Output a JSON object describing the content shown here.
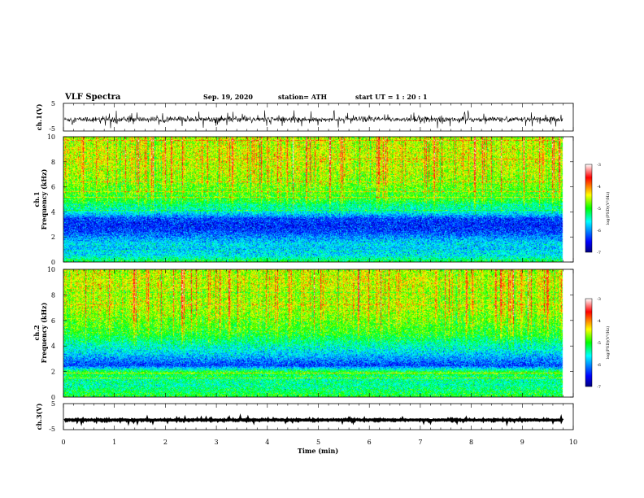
{
  "header": {
    "title": "VLF Spectra",
    "date": "Sep. 19, 2020",
    "station": "station= ATH",
    "start": "start  UT =   1 : 20 : 1"
  },
  "chart_data": [
    {
      "type": "line",
      "name": "ch1-waveform",
      "ylabel": "ch.1(V)",
      "ylim": [
        -5,
        5
      ],
      "yticklabels": [
        "5",
        "-5"
      ],
      "xlim": [
        0,
        10
      ],
      "trace_end_min": 9.8,
      "approx_baseline_V": -0.8,
      "approx_spread_V": 1.6
    },
    {
      "type": "heatmap",
      "name": "ch1-spectrogram",
      "ylabel": "ch.1\nFrequency (kHz)",
      "ylim": [
        0,
        10
      ],
      "yticklabels": [
        "0",
        "2",
        "4",
        "6",
        "8",
        "10"
      ],
      "xlim": [
        0,
        10
      ],
      "data_end_min": 9.8,
      "colorbar": {
        "label": "log(PSD)(V²/Hz)",
        "range": [
          -7,
          -3
        ],
        "ticklabels": [
          "-3",
          "-4",
          "-5",
          "-6",
          "-7"
        ]
      },
      "frequency_profile_kHz": [
        0,
        0.5,
        1.0,
        1.5,
        2.0,
        2.5,
        3.0,
        3.5,
        4.0,
        5.0,
        6.0,
        7.0,
        8.0,
        9.0,
        10.0
      ],
      "frequency_profile_log_psd": [
        -5.0,
        -5.6,
        -5.8,
        -5.7,
        -6.0,
        -6.3,
        -6.4,
        -6.3,
        -5.6,
        -5.0,
        -4.8,
        -4.6,
        -4.5,
        -4.5,
        -4.6
      ]
    },
    {
      "type": "heatmap",
      "name": "ch2-spectrogram",
      "ylabel": "ch.2\nFrequency (kHz)",
      "ylim": [
        0,
        10
      ],
      "yticklabels": [
        "0",
        "2",
        "4",
        "6",
        "8",
        "10"
      ],
      "xlim": [
        0,
        10
      ],
      "data_end_min": 9.8,
      "colorbar": {
        "label": "log(PSD)(V²/Hz)",
        "range": [
          -7,
          -3
        ],
        "ticklabels": [
          "-3",
          "-4",
          "-5",
          "-6",
          "-7"
        ]
      },
      "frequency_profile_kHz": [
        0,
        0.5,
        1.0,
        1.5,
        2.0,
        2.5,
        3.0,
        3.5,
        4.0,
        5.0,
        6.0,
        7.0,
        8.0,
        9.0,
        10.0
      ],
      "frequency_profile_log_psd": [
        -5.0,
        -5.2,
        -5.4,
        -5.3,
        -5.0,
        -6.3,
        -6.0,
        -5.7,
        -5.5,
        -5.0,
        -4.8,
        -4.6,
        -4.6,
        -4.5,
        -4.6
      ]
    },
    {
      "type": "line",
      "name": "ch3-waveform",
      "ylabel": "ch.3(V)",
      "ylim": [
        -5,
        5
      ],
      "yticklabels": [
        "5",
        "-5"
      ],
      "xlim": [
        0,
        10
      ],
      "trace_end_min": 9.8,
      "approx_baseline_V": -1.3,
      "approx_spread_V": 0.3
    }
  ],
  "xaxis": {
    "label": "Time (min)",
    "ticklabels": [
      "0",
      "1",
      "2",
      "3",
      "4",
      "5",
      "6",
      "7",
      "8",
      "9",
      "10"
    ]
  }
}
